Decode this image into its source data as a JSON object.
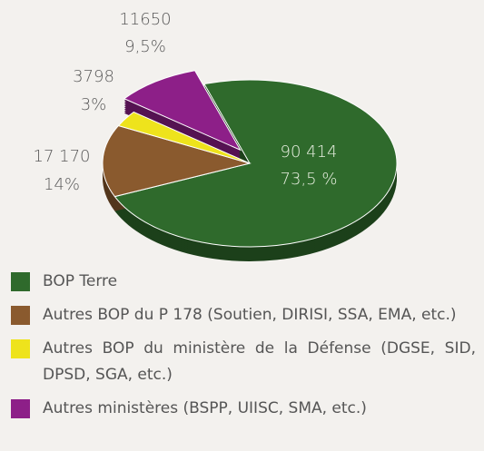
{
  "chart_data": {
    "type": "pie",
    "categories": [
      "BOP Terre",
      "Autres BOP du P 178 (Soutien, DIRISI, SSA, EMA, etc.)",
      "Autres BOP du ministère de la Défense (DGSE, SID, DPSD, SGA, etc.)",
      "Autres ministères (BSPP, UIISC, SMA, etc.)"
    ],
    "values": [
      90414,
      17170,
      3798,
      11650
    ],
    "value_labels": [
      "90 414",
      "17 170",
      "3798",
      "11650"
    ],
    "percentages": [
      73.5,
      14,
      3,
      9.5
    ],
    "percentage_labels": [
      "73,5 %",
      "14%",
      "3%",
      "9,5%"
    ],
    "colors": [
      "#2f6a2c",
      "#8a5a2e",
      "#eee31c",
      "#8d1f88"
    ]
  }
}
